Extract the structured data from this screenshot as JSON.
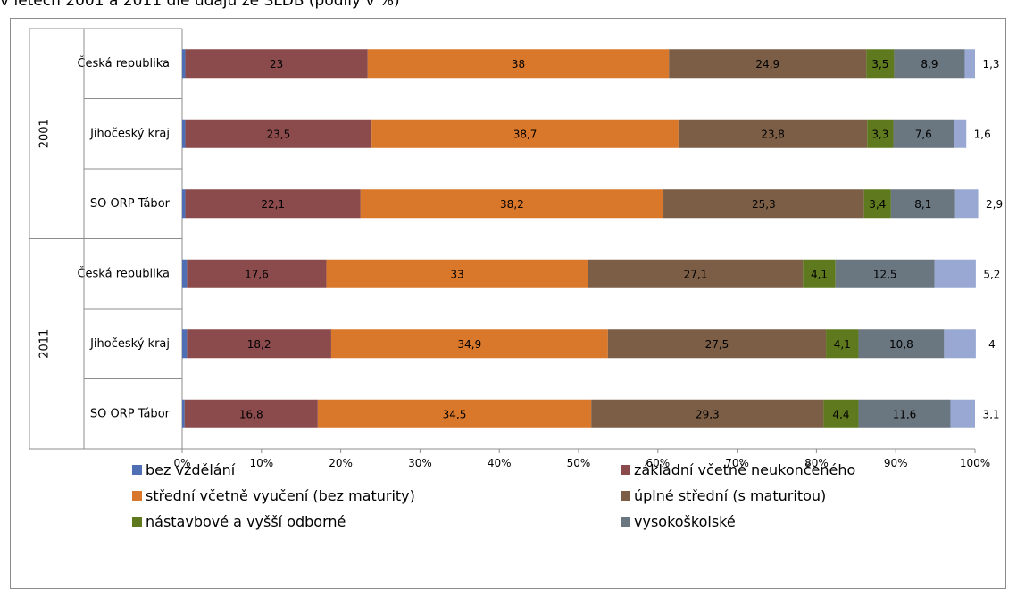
{
  "caption": "v letech 2001 a 2011 dle údajů ze SLDB (podíly v %)",
  "chart_data": {
    "type": "bar",
    "orientation": "horizontal",
    "stacked": "percent",
    "groups": [
      {
        "label": "2001",
        "rows": [
          "Česká republika",
          "Jihočeský kraj",
          "SO ORP Tábor"
        ]
      },
      {
        "label": "2011",
        "rows": [
          "Česká republika",
          "Jihočeský kraj",
          "SO ORP Tábor"
        ]
      }
    ],
    "series": [
      {
        "name": "bez vzdělání",
        "color": "#4f6fb4",
        "values": [
          0.4,
          0.4,
          0.4,
          0.6,
          0.6,
          0.3
        ],
        "labels": [
          "",
          "",
          "",
          "",
          "",
          ""
        ]
      },
      {
        "name": "základní včetně neukončeného",
        "color": "#8b4a4c",
        "values": [
          23,
          23.5,
          22.1,
          17.6,
          18.2,
          16.8
        ],
        "labels": [
          "23",
          "23,5",
          "22,1",
          "17,6",
          "18,2",
          "16,8"
        ]
      },
      {
        "name": "střední včetně vyučení (bez maturity)",
        "color": "#d9772a",
        "values": [
          38,
          38.7,
          38.2,
          33,
          34.9,
          34.5
        ],
        "labels": [
          "38",
          "38,7",
          "38,2",
          "33",
          "34,9",
          "34,5"
        ]
      },
      {
        "name": "úplné střední (s maturitou)",
        "color": "#7b5e45",
        "values": [
          24.9,
          23.8,
          25.3,
          27.1,
          27.5,
          29.3
        ],
        "labels": [
          "24,9",
          "23,8",
          "25,3",
          "27,1",
          "27,5",
          "29,3"
        ]
      },
      {
        "name": "nástavbové a vyšší odborné",
        "color": "#5f7a1e",
        "values": [
          3.5,
          3.3,
          3.4,
          4.1,
          4.1,
          4.4
        ],
        "labels": [
          "3,5",
          "3,3",
          "3,4",
          "4,1",
          "4,1",
          "4,4"
        ]
      },
      {
        "name": "vysokoškolské",
        "color": "#6a7680",
        "values": [
          8.9,
          7.6,
          8.1,
          12.5,
          10.8,
          11.6
        ],
        "labels": [
          "8,9",
          "7,6",
          "8,1",
          "12,5",
          "10,8",
          "11,6"
        ]
      },
      {
        "name": "",
        "color": "#98a8d2",
        "values": [
          1.3,
          1.6,
          2.9,
          5.2,
          4,
          3.1
        ],
        "labels": [
          "1,3",
          "1,6",
          "2,9",
          "5,2",
          "4",
          "3,1"
        ]
      }
    ],
    "xticks": [
      "0%",
      "10%",
      "20%",
      "30%",
      "40%",
      "50%",
      "60%",
      "70%",
      "80%",
      "90%",
      "100%"
    ],
    "xlim": [
      0,
      100
    ],
    "grid": false,
    "legend_position": "bottom",
    "legend_entries": [
      "bez vzdělání",
      "základní včetně neukončeného",
      "střední včetně vyučení (bez maturity)",
      "úplné střední (s maturitou)",
      "nástavbové a vyšší odborné",
      "vysokoškolské"
    ]
  }
}
